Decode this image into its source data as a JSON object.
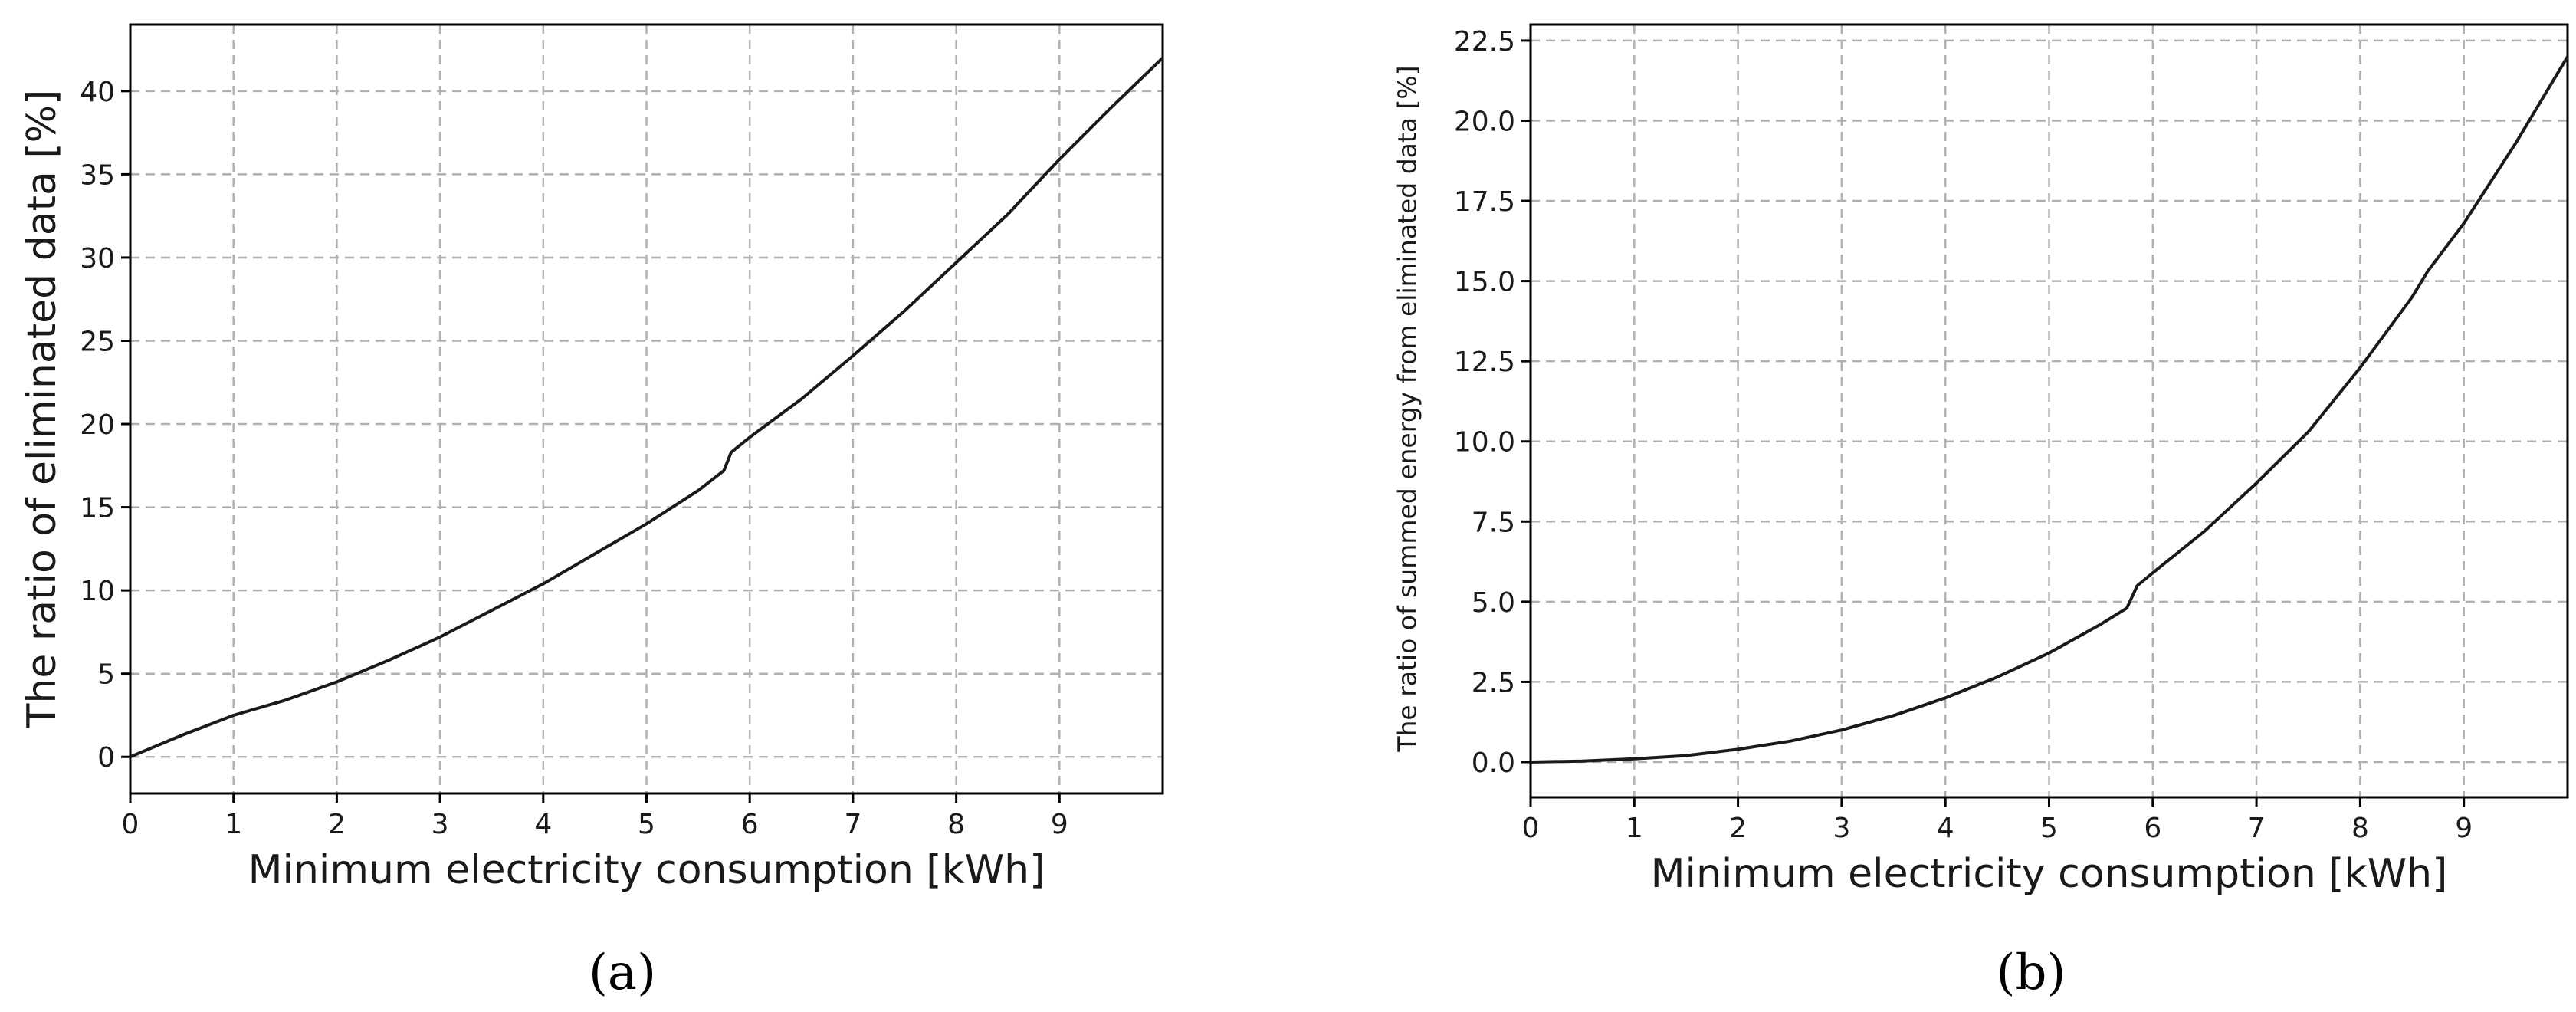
{
  "chart_data": [
    {
      "type": "line",
      "caption": "(a)",
      "xlabel": "Minimum electricity consumption [kWh]",
      "ylabel": "The ratio of eliminated data [%]",
      "xlim": [
        0,
        10
      ],
      "ylim": [
        -2.2,
        44
      ],
      "xticks": [
        0,
        1,
        2,
        3,
        4,
        5,
        6,
        7,
        8,
        9
      ],
      "xtick_labels": [
        "0",
        "1",
        "2",
        "3",
        "4",
        "5",
        "6",
        "7",
        "8",
        "9"
      ],
      "yticks": [
        0,
        5,
        10,
        15,
        20,
        25,
        30,
        35,
        40
      ],
      "ytick_labels": [
        "0",
        "5",
        "10",
        "15",
        "20",
        "25",
        "30",
        "35",
        "40"
      ],
      "grid": true,
      "series": [
        {
          "x": [
            0,
            0.5,
            1,
            1.5,
            2,
            2.5,
            3,
            3.5,
            4,
            4.5,
            5,
            5.5,
            5.75,
            5.82,
            6,
            6.5,
            7,
            7.5,
            8,
            8.5,
            8.65,
            9,
            9.5,
            10
          ],
          "y": [
            0,
            1.3,
            2.5,
            3.4,
            4.5,
            5.8,
            7.2,
            8.8,
            10.4,
            12.2,
            14.0,
            16.0,
            17.2,
            18.3,
            19.2,
            21.5,
            24.1,
            26.8,
            29.7,
            32.6,
            33.6,
            35.9,
            39.0,
            42.0
          ]
        }
      ]
    },
    {
      "type": "line",
      "caption": "(b)",
      "xlabel": "Minimum electricity consumption [kWh]",
      "ylabel": "The ratio of summed energy from eliminated data [%]",
      "xlim": [
        0,
        10
      ],
      "ylim": [
        -1.1,
        23.0
      ],
      "xticks": [
        0,
        1,
        2,
        3,
        4,
        5,
        6,
        7,
        8,
        9
      ],
      "xtick_labels": [
        "0",
        "1",
        "2",
        "3",
        "4",
        "5",
        "6",
        "7",
        "8",
        "9"
      ],
      "yticks": [
        0,
        2.5,
        5,
        7.5,
        10,
        12.5,
        15,
        17.5,
        20,
        22.5
      ],
      "ytick_labels": [
        "0.0",
        "2.5",
        "5.0",
        "7.5",
        "10.0",
        "12.5",
        "15.0",
        "17.5",
        "20.0",
        "22.5"
      ],
      "grid": true,
      "series": [
        {
          "x": [
            0,
            0.5,
            1,
            1.5,
            2,
            2.5,
            3,
            3.5,
            4,
            4.5,
            5,
            5.5,
            5.75,
            5.85,
            6,
            6.5,
            7,
            7.5,
            8,
            8.5,
            8.65,
            9,
            9.5,
            10
          ],
          "y": [
            0,
            0.03,
            0.1,
            0.2,
            0.4,
            0.65,
            1.0,
            1.45,
            2.0,
            2.65,
            3.4,
            4.3,
            4.8,
            5.5,
            5.9,
            7.2,
            8.7,
            10.3,
            12.3,
            14.5,
            15.3,
            16.8,
            19.3,
            22.0
          ]
        }
      ]
    }
  ]
}
